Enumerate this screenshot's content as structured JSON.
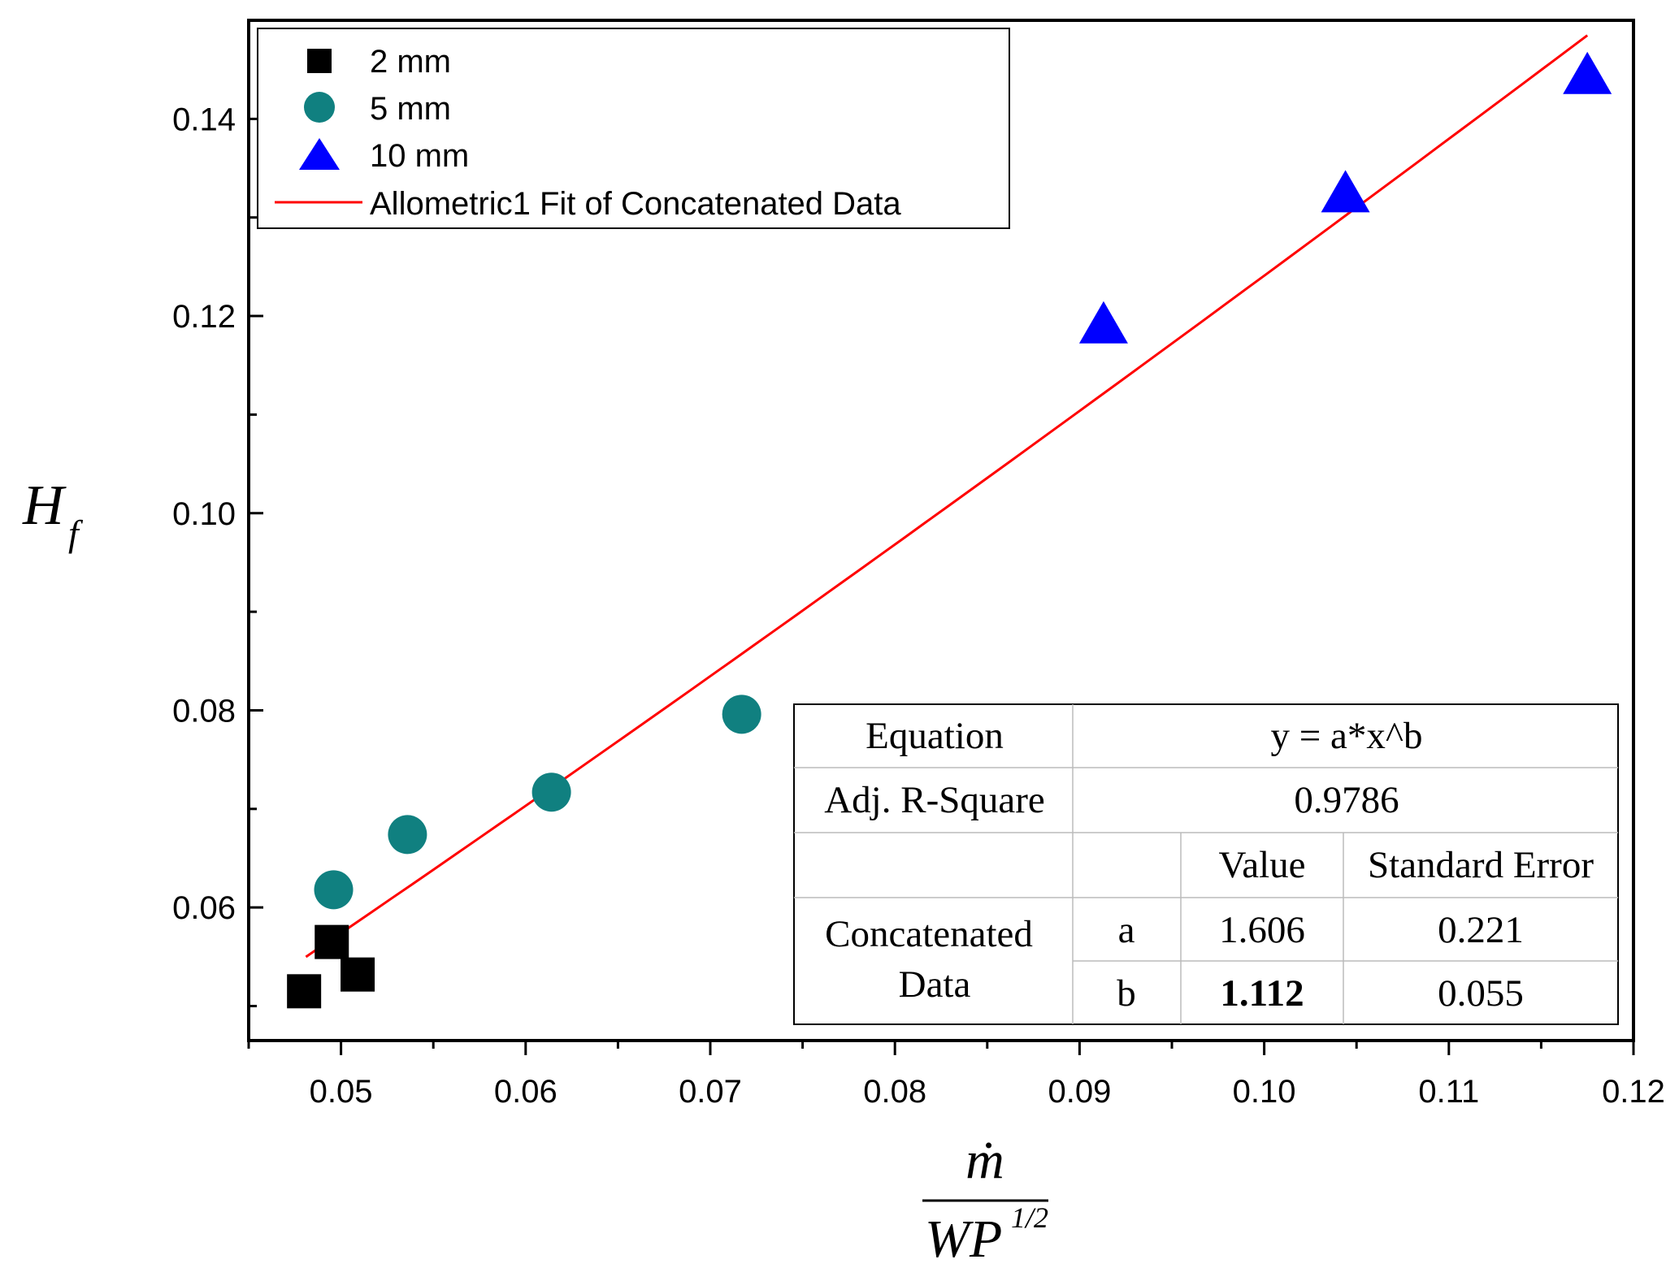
{
  "chart_data": {
    "type": "scatter",
    "title": "",
    "xlabel": {
      "numerator": "ṁ",
      "denominator_base": "WP",
      "denominator_exp": "1/2"
    },
    "ylabel": {
      "base": "H",
      "subscript": "f"
    },
    "xlim": [
      0.045,
      0.12
    ],
    "ylim": [
      0.0465,
      0.15
    ],
    "xticks": [
      0.05,
      0.06,
      0.07,
      0.08,
      0.09,
      0.1,
      0.11,
      0.12
    ],
    "xtick_labels": [
      "0.05",
      "0.06",
      "0.07",
      "0.08",
      "0.09",
      "0.10",
      "0.11",
      "0.12"
    ],
    "yticks": [
      0.06,
      0.08,
      0.1,
      0.12,
      0.14
    ],
    "ytick_labels": [
      "0.06",
      "0.08",
      "0.10",
      "0.12",
      "0.14"
    ],
    "legend_position": "top-left",
    "series": [
      {
        "name": "2 mm",
        "marker": "square",
        "color": "#000000",
        "x": [
          0.048,
          0.0495,
          0.0509
        ],
        "y": [
          0.0515,
          0.0565,
          0.0532
        ]
      },
      {
        "name": "5 mm",
        "marker": "circle",
        "color": "#108080",
        "x": [
          0.0496,
          0.0536,
          0.0614,
          0.0717
        ],
        "y": [
          0.0618,
          0.0674,
          0.0717,
          0.0796
        ]
      },
      {
        "name": "10 mm",
        "marker": "triangle",
        "color": "#0000FF",
        "x": [
          0.0913,
          0.1044,
          0.1175
        ],
        "y": [
          0.1192,
          0.1325,
          0.1445
        ]
      }
    ],
    "fit": {
      "name": "Allometric1 Fit of Concatenated Data",
      "color": "#FF0000",
      "model": "power",
      "a": 1.606,
      "b": 1.112,
      "x_range": [
        0.0481,
        0.1175
      ]
    },
    "fit_table": {
      "equation_label": "Equation",
      "equation": "y = a*x^b",
      "r2_label": "Adj. R-Square",
      "r2": "0.9786",
      "value_header": "Value",
      "error_header": "Standard Error",
      "dataset_line1": "Concatenated",
      "dataset_line2": "Data",
      "params": [
        {
          "name": "a",
          "value": "1.606",
          "error": "0.221",
          "bold": false
        },
        {
          "name": "b",
          "value": "1.112",
          "error": "0.055",
          "bold": true
        }
      ]
    }
  }
}
